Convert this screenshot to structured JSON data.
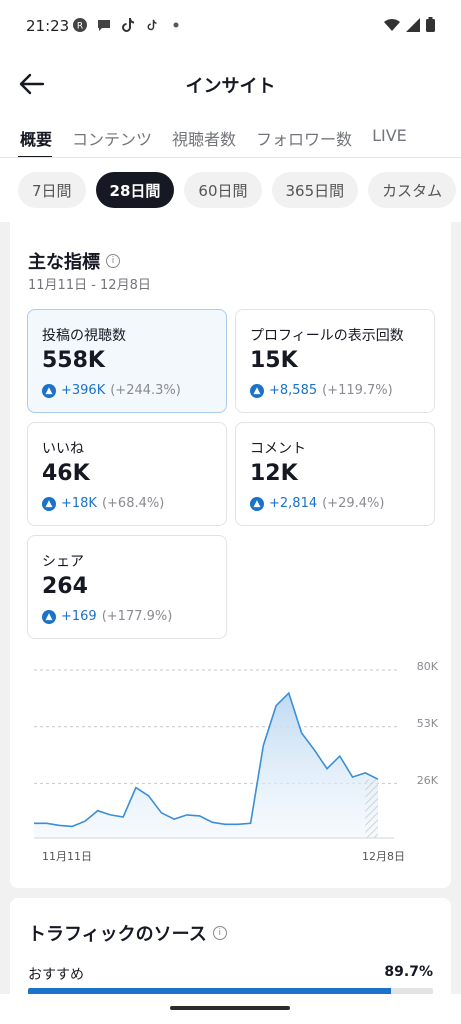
{
  "status_bar": {
    "time": "21:23"
  },
  "header": {
    "title": "インサイト"
  },
  "tabs": [
    {
      "label": "概要",
      "active": true
    },
    {
      "label": "コンテンツ",
      "active": false
    },
    {
      "label": "視聴者数",
      "active": false
    },
    {
      "label": "フォロワー数",
      "active": false
    },
    {
      "label": "LIVE",
      "active": false
    }
  ],
  "periods": [
    {
      "label": "7日間",
      "active": false
    },
    {
      "label": "28日間",
      "active": true
    },
    {
      "label": "60日間",
      "active": false
    },
    {
      "label": "365日間",
      "active": false
    },
    {
      "label": "カスタム",
      "active": false
    }
  ],
  "metrics_section": {
    "title": "主な指標",
    "date_range": "11月11日 - 12月8日",
    "cards": [
      {
        "label": "投稿の視聴数",
        "value": "558K",
        "delta": "+396K",
        "pct": "(+244.3%)"
      },
      {
        "label": "プロフィールの表示回数",
        "value": "15K",
        "delta": "+8,585",
        "pct": "(+119.7%)"
      },
      {
        "label": "いいね",
        "value": "46K",
        "delta": "+18K",
        "pct": "(+68.4%)"
      },
      {
        "label": "コメント",
        "value": "12K",
        "delta": "+2,814",
        "pct": "(+29.4%)"
      },
      {
        "label": "シェア",
        "value": "264",
        "delta": "+169",
        "pct": "(+177.9%)"
      }
    ]
  },
  "chart_data": {
    "type": "area",
    "x_tick_labels": [
      "11月11日",
      "12月8日"
    ],
    "y_tick_labels": [
      "80K",
      "53K",
      "26K"
    ],
    "yticks": [
      26000,
      53000,
      80000
    ],
    "ylim": [
      0,
      80000
    ],
    "values": [
      7000,
      7000,
      6000,
      5500,
      8000,
      13000,
      11000,
      10000,
      24000,
      20000,
      12000,
      9000,
      11000,
      10500,
      7500,
      6500,
      6500,
      7000,
      44000,
      63000,
      69000,
      50000,
      42000,
      33000,
      39000,
      29000,
      31000,
      28000
    ],
    "accent": "#3b8fd6"
  },
  "traffic_section": {
    "title": "トラフィックのソース",
    "items": [
      {
        "label": "おすすめ",
        "pct_text": "89.7%",
        "fraction": 0.897
      }
    ]
  }
}
